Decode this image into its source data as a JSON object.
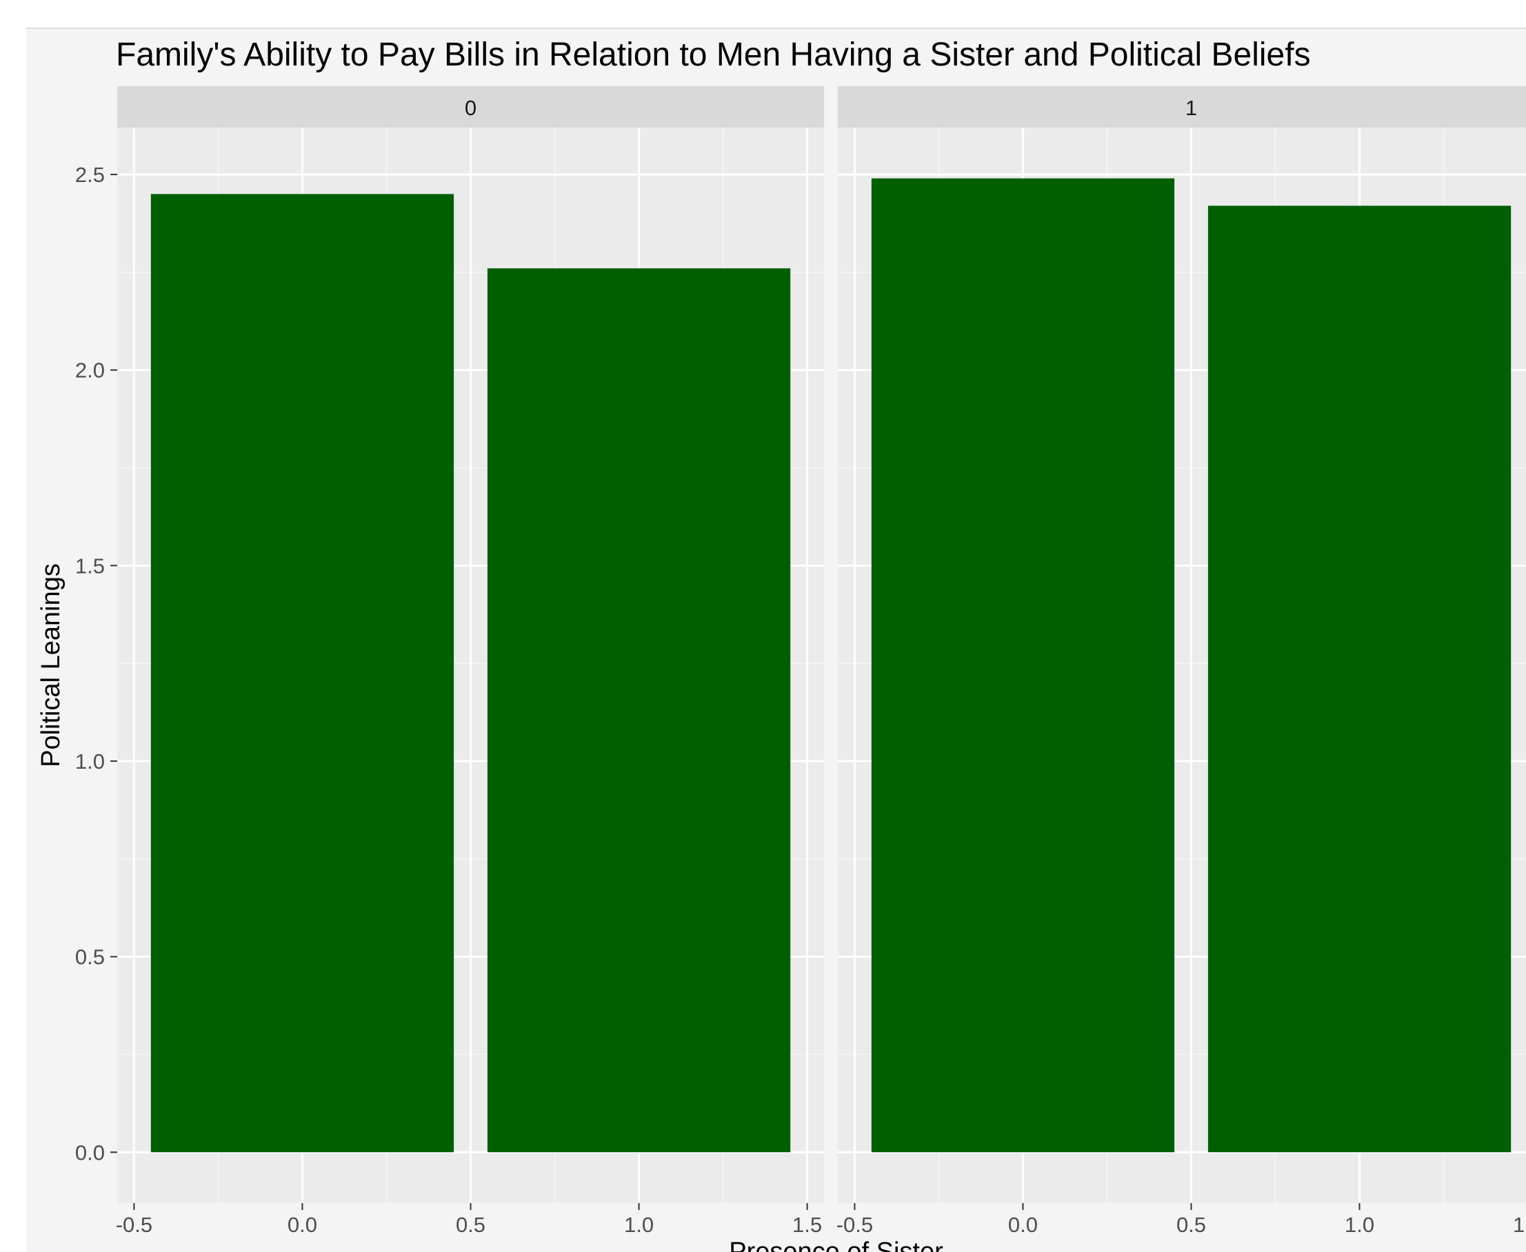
{
  "chart_data": {
    "type": "bar",
    "title": "Family's Ability to Pay Bills in Relation to Men Having a Sister and Political Beliefs",
    "xlabel": "Presence of Sister",
    "ylabel": "Political Leanings",
    "ylim": [
      -0.13,
      2.62
    ],
    "yticks": [
      0.0,
      0.5,
      1.0,
      1.5,
      2.0,
      2.5
    ],
    "ytick_labels": [
      "0.0",
      "0.5",
      "1.0",
      "1.5",
      "2.0",
      "2.5"
    ],
    "xlim": [
      -0.55,
      1.55
    ],
    "xticks": [
      -0.5,
      0.0,
      0.5,
      1.0,
      1.5
    ],
    "xtick_labels": [
      "-0.5",
      "0.0",
      "0.5",
      "1.0",
      "1.5"
    ],
    "bar_width": 0.9,
    "grid": true,
    "facets": [
      {
        "label": "0",
        "x": [
          0,
          1
        ],
        "values": [
          2.45,
          2.26
        ]
      },
      {
        "label": "1",
        "x": [
          0,
          1
        ],
        "values": [
          2.49,
          2.42
        ]
      }
    ],
    "colors": {
      "bar": "#005f00",
      "panel": "#ebebeb",
      "strip": "#d9d9d9",
      "grid_major": "#ffffff",
      "grid_minor": "#f5f5f5",
      "background": "#f4f4f4"
    }
  }
}
